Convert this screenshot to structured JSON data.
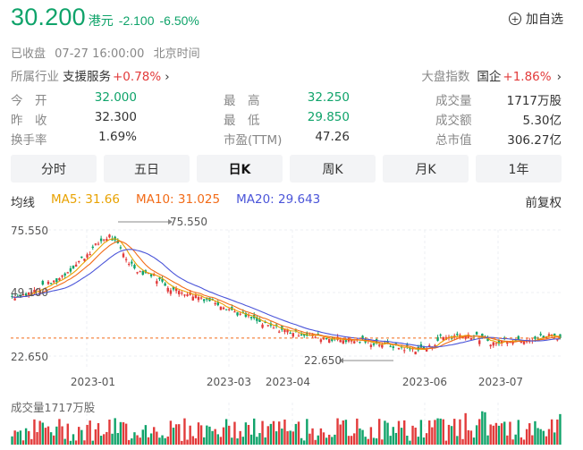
{
  "header": {
    "price": "30.200",
    "currency": "港元",
    "change": "-2.100",
    "change_pct": "-6.50%",
    "add_fav": "加自选"
  },
  "status": {
    "state": "已收盘",
    "datetime": "07-27 16:00:00",
    "timezone": "北京时间"
  },
  "industry": {
    "label": "所属行业",
    "name": "支援服务",
    "pct": "+0.78%"
  },
  "market_index": {
    "label": "大盘指数",
    "name": "国企",
    "pct": "+1.86%"
  },
  "stats": {
    "open_label": "今　开",
    "open": "32.000",
    "high_label": "最　高",
    "high": "32.250",
    "volume_label": "成交量",
    "volume": "1717万股",
    "prev_label": "昨　收",
    "prev": "32.300",
    "low_label": "最　低",
    "low": "29.850",
    "amount_label": "成交额",
    "amount": "5.30亿",
    "turnover_label": "换手率",
    "turnover": "1.69%",
    "pe_label": "市盈(TTM)",
    "pe": "47.26",
    "mcap_label": "总市值",
    "mcap": "306.27亿"
  },
  "tabs": [
    "分时",
    "五日",
    "日K",
    "周K",
    "月K",
    "1年"
  ],
  "active_tab": "日K",
  "ma": {
    "label": "均线",
    "ma5": "MA5: 31.66",
    "ma10": "MA10: 31.025",
    "ma20": "MA20: 29.643",
    "adjust": "前复权"
  },
  "colors": {
    "up": "#e23b3b",
    "down": "#0fa36a",
    "ma5": "#e8a202",
    "ma10": "#f26b18",
    "ma20": "#4b55d9"
  },
  "chart_data": {
    "type": "candlestick",
    "ylim": [
      22.65,
      75.55
    ],
    "y_ticks": [
      "75.550",
      "49.100",
      "22.650"
    ],
    "x_ticks": [
      "2023-01",
      "2023-03",
      "2023-04",
      "2023-06",
      "2023-07"
    ],
    "max_label": "75.550",
    "min_label": "22.650",
    "last_close": 30.2,
    "volume_label": "成交量1717万股",
    "close_path": [
      [
        0,
        47.6
      ],
      [
        5,
        48.5
      ],
      [
        10,
        51.0
      ],
      [
        16,
        54.5
      ],
      [
        22,
        60.0
      ],
      [
        28,
        66.5
      ],
      [
        32,
        71.0
      ],
      [
        35,
        73.0
      ],
      [
        38,
        69.0
      ],
      [
        42,
        62.0
      ],
      [
        46,
        58.0
      ],
      [
        50,
        57.0
      ],
      [
        54,
        53.5
      ],
      [
        58,
        50.5
      ],
      [
        62,
        49.5
      ],
      [
        66,
        48.0
      ],
      [
        70,
        46.5
      ],
      [
        74,
        45.0
      ],
      [
        78,
        42.5
      ],
      [
        82,
        40.0
      ],
      [
        86,
        38.5
      ],
      [
        90,
        36.0
      ],
      [
        94,
        34.5
      ],
      [
        98,
        33.5
      ],
      [
        102,
        32.5
      ],
      [
        106,
        31.6
      ],
      [
        110,
        30.8
      ],
      [
        114,
        30.2
      ],
      [
        118,
        29.6
      ],
      [
        122,
        29.4
      ],
      [
        126,
        28.8
      ],
      [
        130,
        28.2
      ],
      [
        134,
        27.6
      ],
      [
        138,
        26.7
      ],
      [
        142,
        25.8
      ],
      [
        146,
        25.4
      ],
      [
        150,
        26.2
      ],
      [
        154,
        30.5
      ],
      [
        158,
        30.8
      ],
      [
        162,
        31.8
      ],
      [
        166,
        30.9
      ],
      [
        170,
        29.2
      ],
      [
        174,
        27.8
      ],
      [
        178,
        29.8
      ],
      [
        182,
        29.5
      ],
      [
        186,
        30.1
      ],
      [
        190,
        30.5
      ],
      [
        194,
        31.4
      ],
      [
        197,
        30.2
      ]
    ]
  }
}
